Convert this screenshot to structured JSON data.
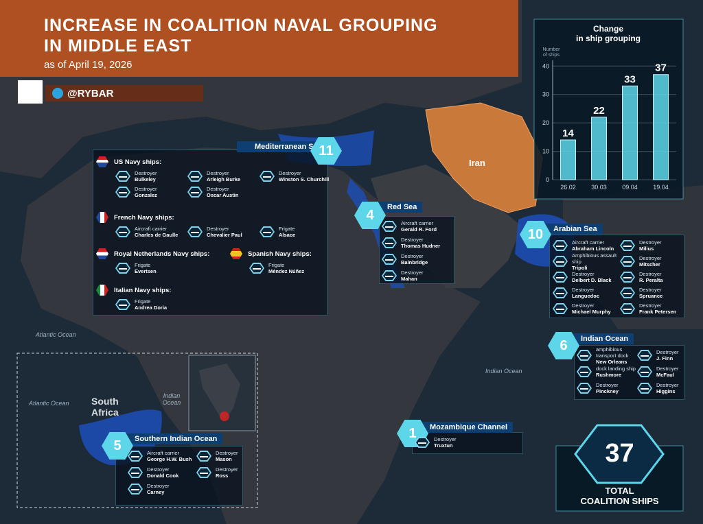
{
  "header": {
    "title_lines": [
      "INCREASE IN COALITION NAVAL GROUPING",
      "IN MIDDLE EAST"
    ],
    "subtitle": "as of April 19, 2026",
    "brand": "@RYBAR"
  },
  "map_labels": {
    "iran": "Iran",
    "atlantic_north": "Atlantic Ocean",
    "atlantic_south": "Atlantic Ocean",
    "indian_north": "Indian Ocean",
    "indian_south": "Indian Ocean",
    "south_africa_lines": [
      "South",
      "Africa"
    ]
  },
  "chart_data": {
    "type": "bar",
    "title_lines": [
      "Change",
      "in ship grouping"
    ],
    "ylabel_lines": [
      "Number",
      "of ships"
    ],
    "categories": [
      "26.02",
      "30.03",
      "09.04",
      "19.04"
    ],
    "values": [
      14,
      22,
      33,
      37
    ],
    "color": "#5ed6ea",
    "ylim": [
      0,
      42
    ],
    "yticks": [
      0,
      10,
      20,
      30,
      40
    ],
    "grid": true
  },
  "groups": [
    {
      "name": "Mediterranean Sea",
      "count": "11",
      "navies": [
        {
          "name": "US Navy ships:",
          "ships": [
            {
              "type": "Destroyer",
              "name": "Bulkeley"
            },
            {
              "type": "Destroyer",
              "name": "Arleigh Burke"
            },
            {
              "type": "Destroyer",
              "name": "Winston S. Churchill"
            },
            {
              "type": "Destroyer",
              "name": "Gonzalez"
            },
            {
              "type": "Destroyer",
              "name": "Oscar Austin"
            }
          ]
        },
        {
          "name": "French Navy ships:",
          "ships": [
            {
              "type": "Aircraft carrier",
              "name": "Charles de Gaulle"
            },
            {
              "type": "Destroyer",
              "name": "Chevalier Paul"
            },
            {
              "type": "Frigate",
              "name": "Alsace"
            }
          ]
        },
        {
          "name": "Royal Netherlands Navy ships:",
          "ships": [
            {
              "type": "Frigate",
              "name": "Evertsen"
            }
          ]
        },
        {
          "name": "Spanish Navy ships:",
          "ships": [
            {
              "type": "Frigate",
              "name": "Méndez Núñez"
            }
          ]
        },
        {
          "name": "Italian Navy ships:",
          "ships": [
            {
              "type": "Frigate",
              "name": "Andrea Doria"
            }
          ]
        }
      ]
    },
    {
      "name": "Red Sea",
      "count": "4",
      "ships": [
        {
          "type": "Aircraft carrier",
          "name": "Gerald R. Ford"
        },
        {
          "type": "Destroyer",
          "name": "Thomas Hudner"
        },
        {
          "type": "Destroyer",
          "name": "Bainbridge"
        },
        {
          "type": "Destroyer",
          "name": "Mahan"
        }
      ]
    },
    {
      "name": "Arabian Sea",
      "count": "10",
      "ships": [
        {
          "type": "Aircraft carrier",
          "name": "Abraham Lincoln"
        },
        {
          "type": "Amphibious assault ship",
          "name": "Tripoli"
        },
        {
          "type": "Destroyer",
          "name": "Delbert D. Black"
        },
        {
          "type": "Destroyer",
          "name": "Languedoc"
        },
        {
          "type": "Destroyer",
          "name": "Michael Murphy"
        },
        {
          "type": "Destroyer",
          "name": "Milius"
        },
        {
          "type": "Destroyer",
          "name": "Mitscher"
        },
        {
          "type": "Destroyer",
          "name": "R. Peralta"
        },
        {
          "type": "Destroyer",
          "name": "Spruance"
        },
        {
          "type": "Destroyer",
          "name": "Frank Petersen"
        }
      ]
    },
    {
      "name": "Indian Ocean",
      "count": "6",
      "ships": [
        {
          "type": "amphibious transport dock",
          "name": "New Orleans"
        },
        {
          "type": "dock landing ship",
          "name": "Rushmore"
        },
        {
          "type": "Destroyer",
          "name": "Pinckney"
        },
        {
          "type": "Destroyer",
          "name": "J. Finn"
        },
        {
          "type": "Destroyer",
          "name": "McFaul"
        },
        {
          "type": "Destroyer",
          "name": "Higgins"
        }
      ]
    },
    {
      "name": "Mozambique Channel",
      "count": "1",
      "ships": [
        {
          "type": "Destroyer",
          "name": "Truxtun"
        }
      ]
    },
    {
      "name": "Southern Indian Ocean",
      "count": "5",
      "ships": [
        {
          "type": "Aircraft carrier",
          "name": "George H.W. Bush"
        },
        {
          "type": "Destroyer",
          "name": "Donald Cook"
        },
        {
          "type": "Destroyer",
          "name": "Carney"
        },
        {
          "type": "Destroyer",
          "name": "Mason"
        },
        {
          "type": "Destroyer",
          "name": "Ross"
        }
      ]
    }
  ],
  "total": {
    "count": "37",
    "label_lines": [
      "TOTAL",
      "COALITION SHIPS"
    ]
  }
}
